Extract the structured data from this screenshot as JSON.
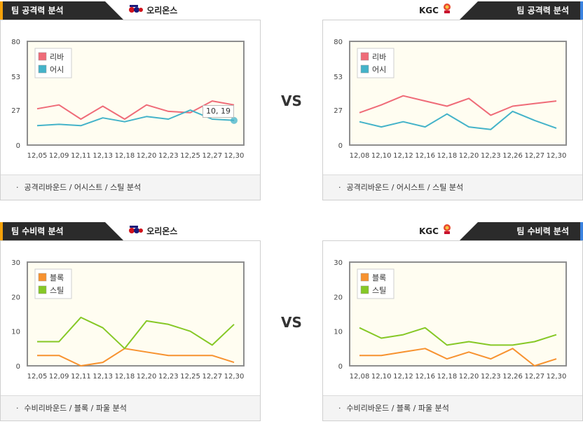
{
  "headers": [
    {
      "title": "팀 공격력 분석",
      "team": "오리온스"
    },
    {
      "title": "팀 공격력 분석",
      "team": "KGC"
    },
    {
      "title": "팀 수비력 분석",
      "team": "오리온스"
    },
    {
      "title": "팀 수비력 분석",
      "team": "KGC"
    }
  ],
  "vs_label": "VS",
  "footers": [
    "공격리바운드 / 어시스트 / 스틸 분석",
    "공격리바운드 / 어시스트 / 스틸 분석",
    "수비리바운드 / 블록 / 파울 분석",
    "수비리바운드 / 블록 / 파울 분석"
  ],
  "footer_bullet": "·",
  "tooltip": "10, 19",
  "colors": {
    "rebound": "#ef6b78",
    "assist": "#44b3c9",
    "block": "#f7922f",
    "steal": "#86c826",
    "plot_bg": "#fffdf1"
  },
  "chart_data": [
    {
      "type": "line",
      "categories": [
        "12,05",
        "12,09",
        "12,11",
        "12,13",
        "12,18",
        "12,20",
        "12,23",
        "12,25",
        "12,27",
        "12,30"
      ],
      "yticks": [
        0,
        27,
        53,
        80
      ],
      "ylim": [
        0,
        80
      ],
      "legend": "top-left",
      "series": [
        {
          "name": "리바",
          "color_key": "rebound",
          "values": [
            28,
            31,
            20,
            30,
            20,
            31,
            26,
            25,
            34,
            31
          ]
        },
        {
          "name": "어시",
          "color_key": "assist",
          "values": [
            15,
            16,
            15,
            21,
            18,
            22,
            20,
            27,
            20,
            19
          ]
        }
      ]
    },
    {
      "type": "line",
      "categories": [
        "12,08",
        "12,10",
        "12,12",
        "12,16",
        "12,18",
        "12,20",
        "12,23",
        "12,26",
        "12,27",
        "12,30"
      ],
      "yticks": [
        0,
        27,
        53,
        80
      ],
      "ylim": [
        0,
        80
      ],
      "legend": "top-left",
      "series": [
        {
          "name": "리바",
          "color_key": "rebound",
          "values": [
            25,
            31,
            38,
            34,
            30,
            36,
            23,
            30,
            32,
            34
          ]
        },
        {
          "name": "어시",
          "color_key": "assist",
          "values": [
            18,
            14,
            18,
            14,
            24,
            14,
            12,
            26,
            19,
            13
          ]
        }
      ]
    },
    {
      "type": "line",
      "categories": [
        "12,05",
        "12,09",
        "12,11",
        "12,13",
        "12,18",
        "12,20",
        "12,23",
        "12,25",
        "12,27",
        "12,30"
      ],
      "yticks": [
        0,
        10,
        20,
        30
      ],
      "ylim": [
        0,
        30
      ],
      "legend": "top-left",
      "series": [
        {
          "name": "블록",
          "color_key": "block",
          "values": [
            3,
            3,
            0,
            1,
            5,
            4,
            3,
            3,
            3,
            1
          ]
        },
        {
          "name": "스틸",
          "color_key": "steal",
          "values": [
            7,
            7,
            14,
            11,
            5,
            13,
            12,
            10,
            6,
            12
          ]
        }
      ]
    },
    {
      "type": "line",
      "categories": [
        "12,08",
        "12,10",
        "12,12",
        "12,16",
        "12,18",
        "12,20",
        "12,23",
        "12,26",
        "12,27",
        "12,30"
      ],
      "yticks": [
        0,
        10,
        20,
        30
      ],
      "ylim": [
        0,
        30
      ],
      "legend": "top-left",
      "series": [
        {
          "name": "블록",
          "color_key": "block",
          "values": [
            3,
            3,
            4,
            5,
            2,
            4,
            2,
            5,
            0,
            2
          ]
        },
        {
          "name": "스틸",
          "color_key": "steal",
          "values": [
            11,
            8,
            9,
            11,
            6,
            7,
            6,
            6,
            7,
            9
          ]
        }
      ]
    }
  ]
}
